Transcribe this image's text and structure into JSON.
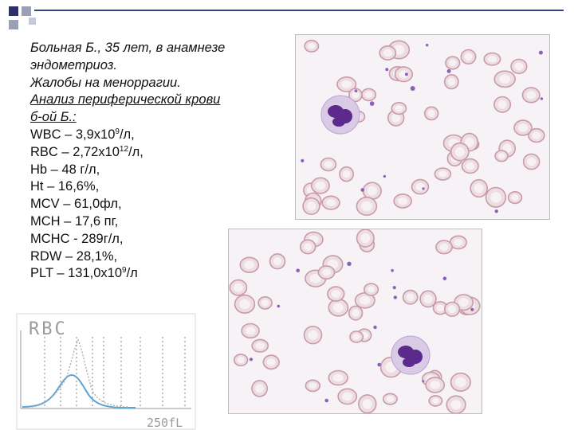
{
  "case": {
    "patient_line": "Больная Б., 35 лет, в анамнезе",
    "patient_line2": "эндометриоз.",
    "complaint": "Жалобы на меноррагии.",
    "analysis_title_line1": "Анализ периферической крови",
    "analysis_title_line2": "б-ой Б.:"
  },
  "labs": [
    {
      "name": "WBC",
      "sep": " – ",
      "value": "3,9х10",
      "sup": "9",
      "unit": "/л,"
    },
    {
      "name": "RBC",
      "sep": " – ",
      "value": "2,72х10",
      "sup": "12",
      "unit": "/л,"
    },
    {
      "name": "Hb",
      "sep": " – ",
      "value": "48 г/л,",
      "sup": "",
      "unit": ""
    },
    {
      "name": "Ht",
      "sep": " – ",
      "value": "16,6%,",
      "sup": "",
      "unit": ""
    },
    {
      "name": "MCV",
      "sep": " – ",
      "value": "61,0фл,",
      "sup": "",
      "unit": ""
    },
    {
      "name": "MCH",
      "sep": " – ",
      "value": "17,6 пг,",
      "sup": "",
      "unit": ""
    },
    {
      "name": "MCHC",
      "sep": " - ",
      "value": "289г/л,",
      "sup": "",
      "unit": ""
    },
    {
      "name": "RDW",
      "sep": " – ",
      "value": "28,1%,",
      "sup": "",
      "unit": ""
    },
    {
      "name": "PLT",
      "sep": " – ",
      "value": "131,0х10",
      "sup": "9",
      "unit": "/л"
    }
  ],
  "histogram": {
    "label": "RBC",
    "scale_max_label": "250fL"
  },
  "colors": {
    "accent_dark": "#2b2f6b",
    "accent_light": "#9aa0b6",
    "rbc_fill": "#ecdde2",
    "rbc_edge": "#c99aa8",
    "leukocyte_nucleus": "#5b2a8c",
    "histogram_curve": "#5aa5d8"
  }
}
